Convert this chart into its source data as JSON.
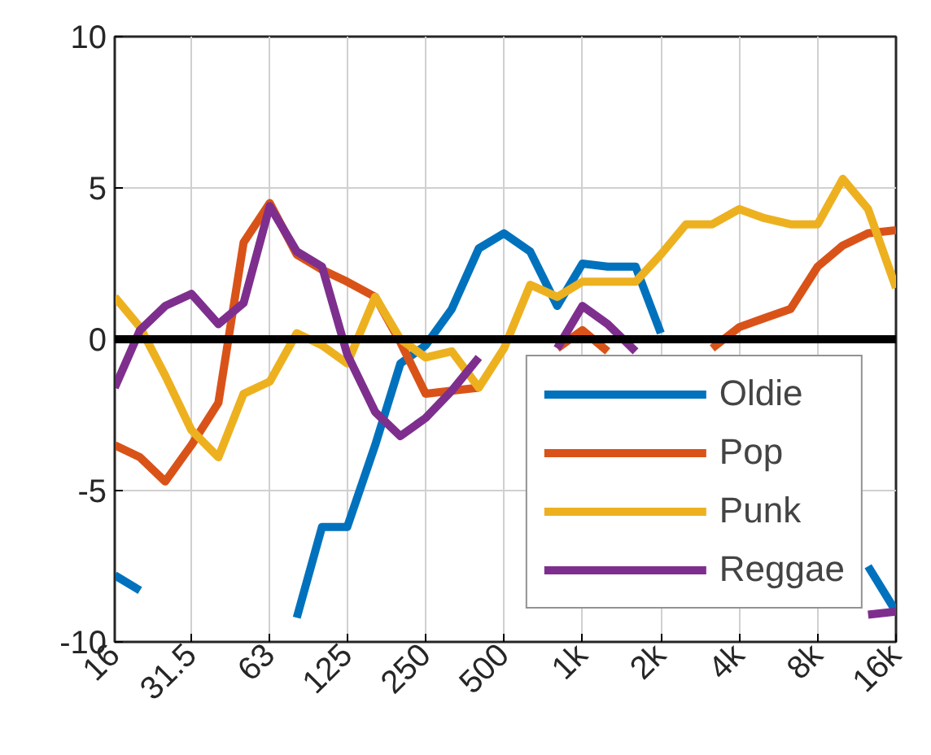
{
  "chart_data": {
    "type": "line",
    "log": "x",
    "x": [
      16,
      20,
      25,
      31.5,
      40,
      50,
      63,
      80,
      100,
      125,
      160,
      200,
      250,
      315,
      400,
      500,
      630,
      800,
      1000,
      1250,
      1600,
      2000,
      2500,
      3150,
      4000,
      5000,
      6300,
      8000,
      10000,
      12500,
      16000
    ],
    "series": [
      {
        "name": "Oldie",
        "color": "#0072bd",
        "values": [
          -7.8,
          -8.3,
          null,
          null,
          null,
          null,
          null,
          -9.2,
          -6.2,
          -6.2,
          -3.5,
          -0.8,
          -0.2,
          1.0,
          3.0,
          3.5,
          2.9,
          1.1,
          2.5,
          2.4,
          2.4,
          0.2,
          null,
          null,
          null,
          null,
          null,
          null,
          null,
          -7.5,
          -9.0
        ]
      },
      {
        "name": "Pop",
        "color": "#d95319",
        "values": [
          -3.5,
          -3.9,
          -4.7,
          -3.5,
          -2.1,
          3.2,
          4.5,
          2.8,
          2.3,
          1.9,
          1.4,
          -0.1,
          -1.8,
          -1.7,
          -1.6,
          null,
          null,
          -0.3,
          0.3,
          -0.4,
          null,
          null,
          null,
          -0.3,
          0.4,
          0.7,
          1.0,
          2.4,
          3.1,
          3.5,
          3.6
        ]
      },
      {
        "name": "Punk",
        "color": "#edb120",
        "values": [
          1.4,
          0.4,
          -1.2,
          -3.0,
          -3.9,
          -1.8,
          -1.4,
          0.2,
          -0.2,
          -0.8,
          1.4,
          0.0,
          -0.6,
          -0.4,
          -1.6,
          -0.3,
          1.8,
          1.4,
          1.9,
          1.9,
          1.9,
          2.8,
          3.8,
          3.8,
          4.3,
          4.0,
          3.8,
          3.8,
          5.3,
          4.3,
          1.7
        ]
      },
      {
        "name": "Reggae",
        "color": "#7e2f8e",
        "values": [
          -1.6,
          0.3,
          1.1,
          1.5,
          0.5,
          1.2,
          4.4,
          2.9,
          2.4,
          -0.5,
          -2.4,
          -3.2,
          -2.6,
          -1.7,
          -0.6,
          null,
          null,
          -0.3,
          1.1,
          0.5,
          -0.4,
          null,
          null,
          null,
          null,
          null,
          null,
          null,
          null,
          -9.1,
          -9.0
        ]
      }
    ],
    "xlim": [
      16,
      16000
    ],
    "xticks": [
      16,
      31.5,
      63,
      125,
      250,
      500,
      {
        "value": 1000,
        "label": "1k"
      },
      {
        "value": 2000,
        "label": "2k"
      },
      {
        "value": 4000,
        "label": "4k"
      },
      {
        "value": 8000,
        "label": "8k"
      },
      {
        "value": 16000,
        "label": "16k"
      }
    ],
    "ylim": [
      -10,
      10
    ],
    "yticks": [
      -10,
      -5,
      0,
      5,
      10
    ],
    "ref_lines": [
      {
        "axis": "y",
        "value": 0,
        "color": "#000000"
      }
    ],
    "grid": true,
    "legend": "bottom right",
    "line_style": "solid"
  }
}
